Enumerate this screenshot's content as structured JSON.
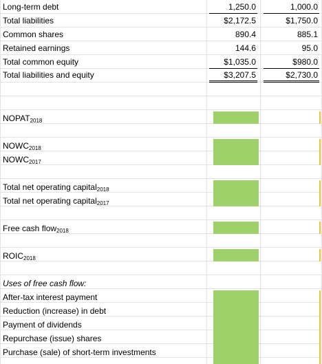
{
  "balance_sheet": [
    {
      "label": "Long-term debt",
      "v2018": "1,250.0",
      "v2017": "1,000.0"
    },
    {
      "label": "Total liabilities",
      "v2018": "$2,172.5",
      "v2017": "$1,750.0"
    },
    {
      "label": "Common shares",
      "v2018": "890.4",
      "v2017": "885.1"
    },
    {
      "label": "Retained earnings",
      "v2018": "144.6",
      "v2017": "95.0"
    },
    {
      "label": "Total common equity",
      "v2018": "$1,035.0",
      "v2017": "$980.0"
    },
    {
      "label": "Total liabilities and equity",
      "v2018": "$3,207.5",
      "v2017": "$2,730.0"
    }
  ],
  "calc": {
    "nopat": {
      "base": "NOPAT",
      "sub": "2018"
    },
    "nowc_2018": {
      "base": "NOWC",
      "sub": "2018"
    },
    "nowc_2017": {
      "base": "NOWC",
      "sub": "2017"
    },
    "tnoc_2018": {
      "base": "Total net operating capital",
      "sub": "2018"
    },
    "tnoc_2017": {
      "base": "Total net operating capital",
      "sub": "2017"
    },
    "fcf": {
      "base": "Free cash flow",
      "sub": "2018"
    },
    "roic": {
      "base": "ROIC",
      "sub": "2018"
    }
  },
  "uses": {
    "heading": "Uses of free cash flow:",
    "items": [
      "After-tax interest payment",
      "Reduction (increase) in debt",
      "Payment of dividends",
      "Repurchase (issue) shares",
      "Purchase (sale) of short-term investments"
    ]
  },
  "colors": {
    "input_fill": "#9fd16a",
    "grid": "#e2e3e3",
    "edge_marker": "#f1c232"
  }
}
